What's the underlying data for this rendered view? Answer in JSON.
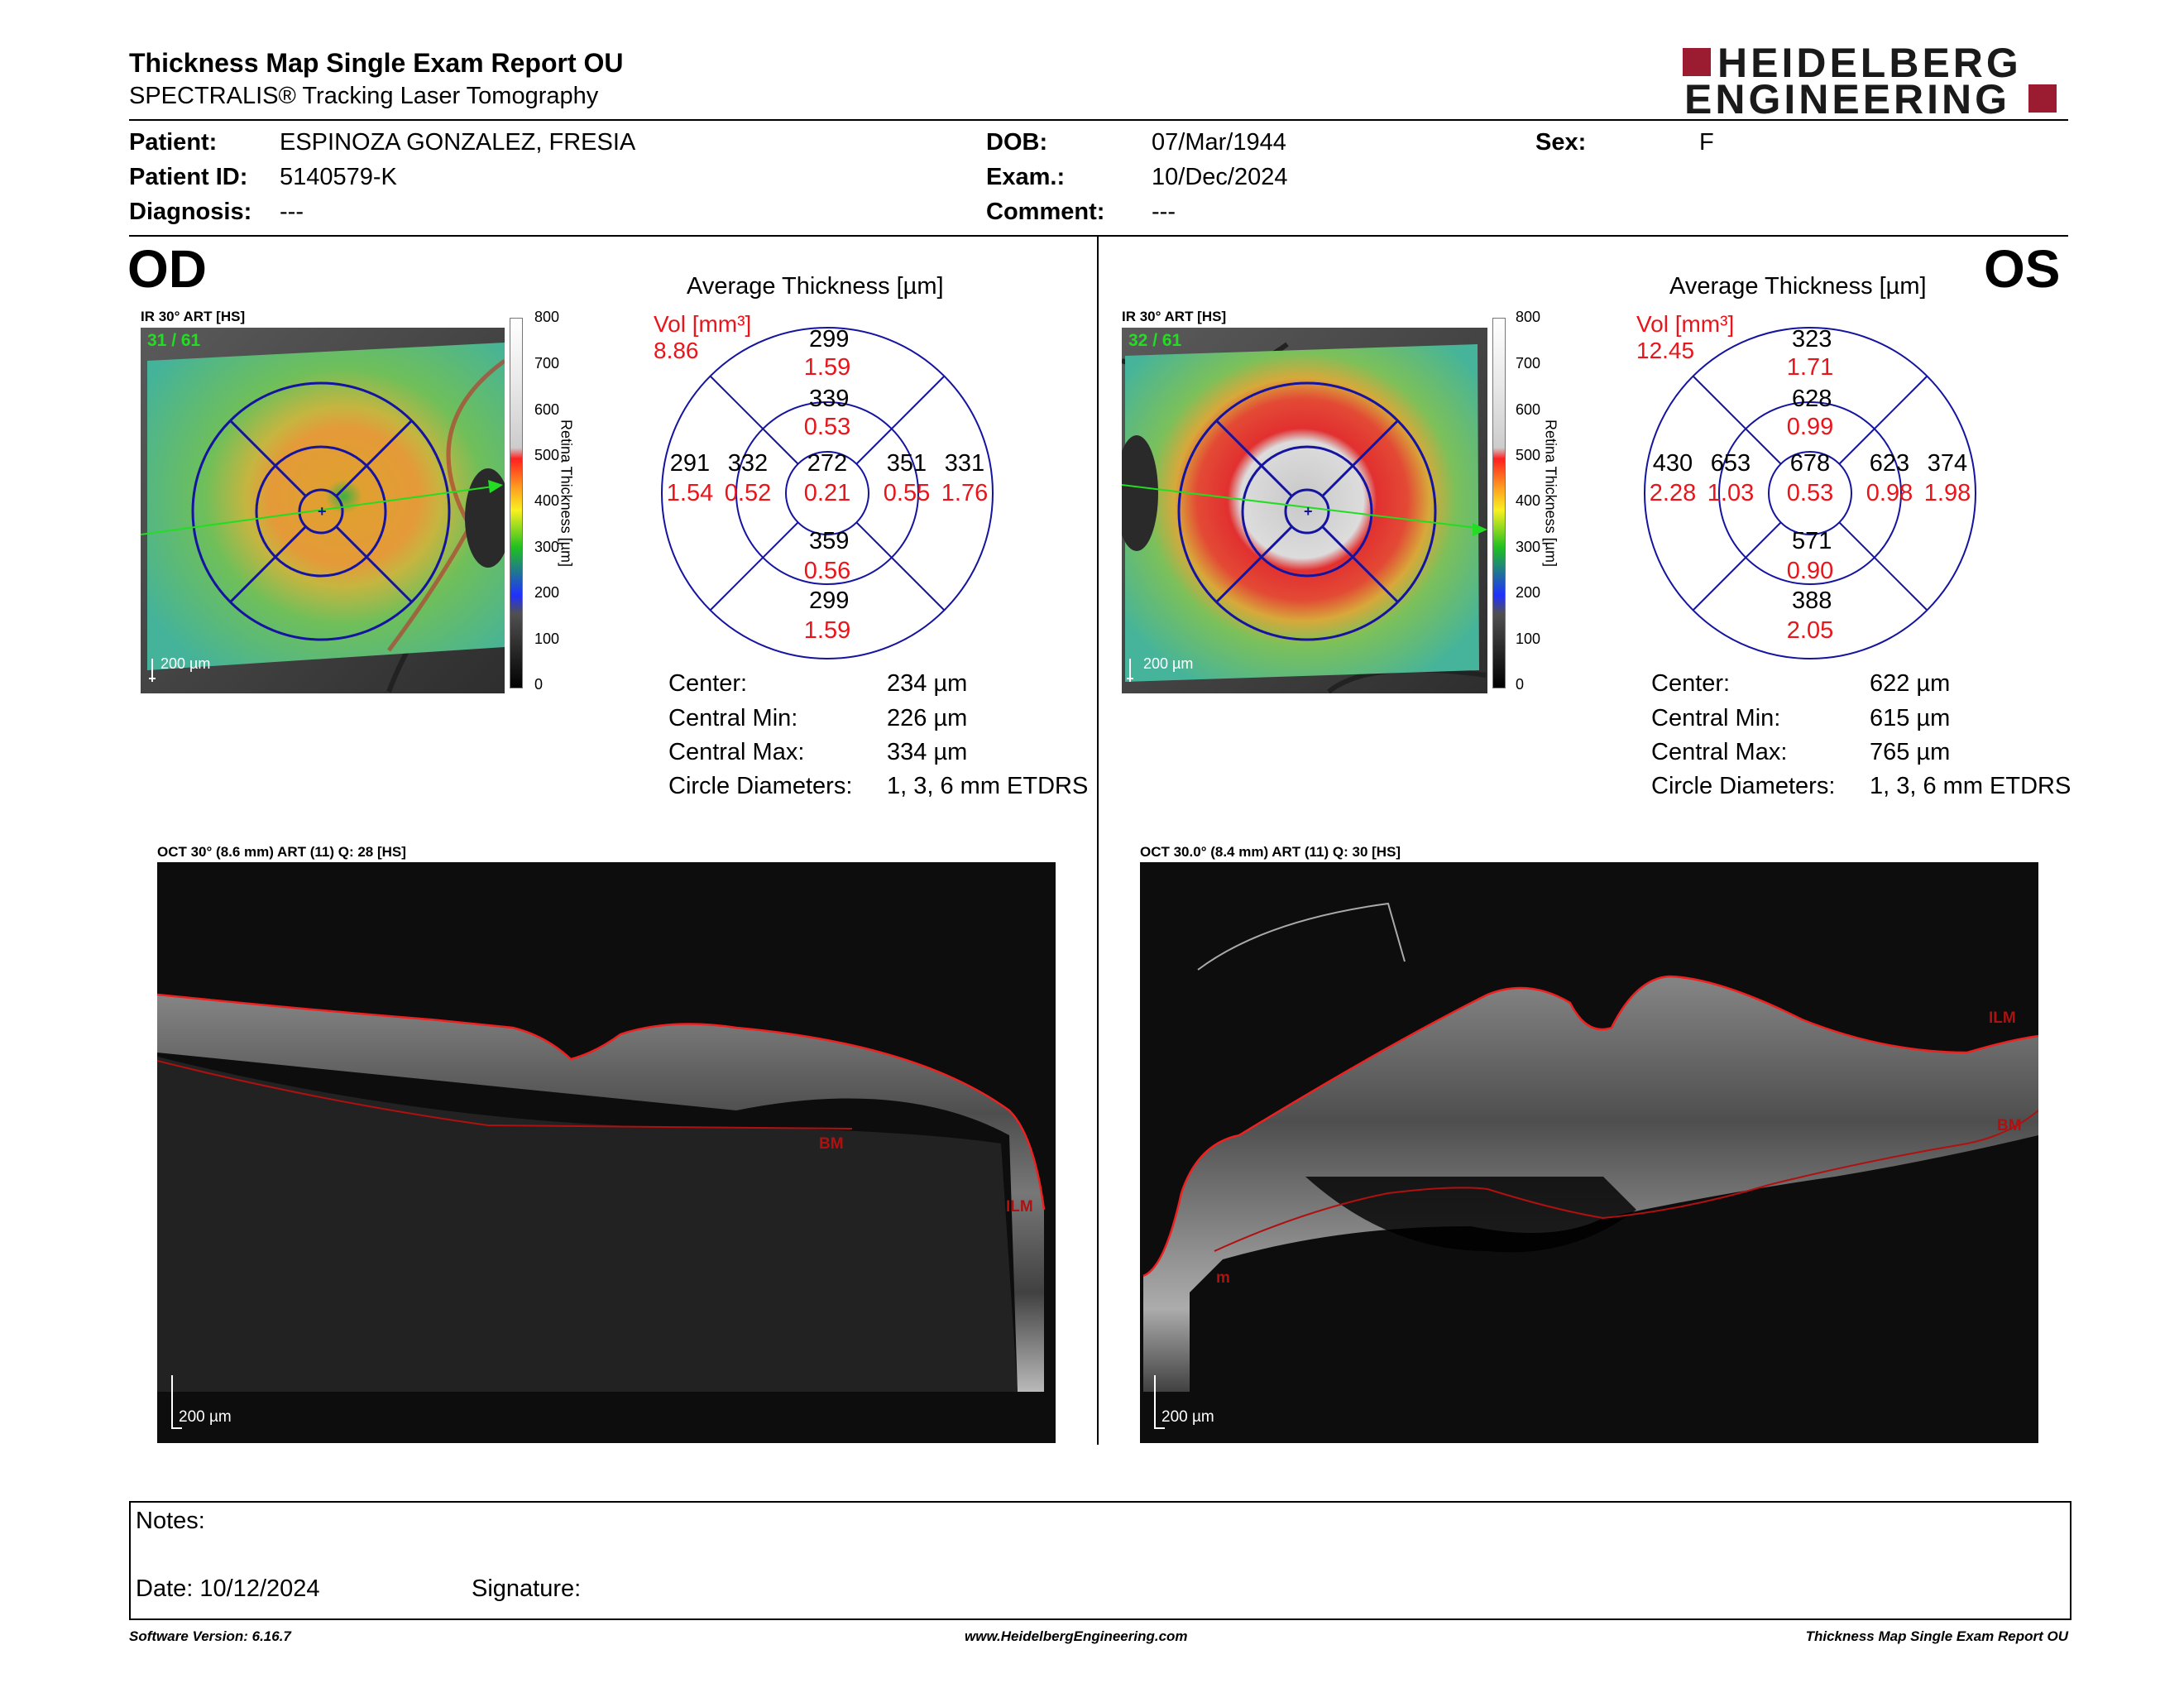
{
  "report": {
    "title": "Thickness Map Single Exam Report OU",
    "subtitle": "SPECTRALIS® Tracking Laser Tomography",
    "brand_line1": "HEIDELBERG",
    "brand_line2": "ENGINEERING"
  },
  "patient": {
    "patient_label": "Patient:",
    "patient_value": "ESPINOZA GONZALEZ, FRESIA",
    "id_label": "Patient ID:",
    "id_value": "5140579-K",
    "diagnosis_label": "Diagnosis:",
    "diagnosis_value": "---",
    "dob_label": "DOB:",
    "dob_value": "07/Mar/1944",
    "exam_label": "Exam.:",
    "exam_value": "10/Dec/2024",
    "comment_label": "Comment:",
    "comment_value": "---",
    "sex_label": "Sex:",
    "sex_value": "F"
  },
  "scale": {
    "ticks": [
      "800",
      "700",
      "600",
      "500",
      "400",
      "300",
      "200",
      "100",
      "0"
    ],
    "axis_label": "Retina Thickness [µm]"
  },
  "od": {
    "eye": "OD",
    "ir_label": "IR 30° ART [HS]",
    "ir_overlay": "31 / 61",
    "scale_bar": "200 µm",
    "avg_title": "Average Thickness [µm]",
    "vol_label": "Vol [mm³]",
    "vol_total": "8.86",
    "sectors": {
      "outer_sup": {
        "t": "299",
        "v": "1.59"
      },
      "inner_sup": {
        "t": "339",
        "v": "0.53"
      },
      "outer_temp": {
        "t": "291",
        "v": "1.54"
      },
      "inner_temp": {
        "t": "332",
        "v": "0.52"
      },
      "center": {
        "t": "272",
        "v": "0.21"
      },
      "inner_nas": {
        "t": "351",
        "v": "0.55"
      },
      "outer_nas": {
        "t": "331",
        "v": "1.76"
      },
      "inner_inf": {
        "t": "359",
        "v": "0.56"
      },
      "outer_inf": {
        "t": "299",
        "v": "1.59"
      }
    },
    "stats": {
      "center_label": "Center:",
      "center_value": "234 µm",
      "min_label": "Central Min:",
      "min_value": "226 µm",
      "max_label": "Central Max:",
      "max_value": "334 µm",
      "diam_label": "Circle Diameters:",
      "diam_value": "1, 3, 6 mm ETDRS"
    },
    "oct_label": "OCT 30° (8.6 mm) ART (11) Q: 28 [HS]",
    "oct_scale": "200 µm",
    "layer_bm": "BM",
    "layer_ilm": "ILM"
  },
  "os": {
    "eye": "OS",
    "ir_label": "IR 30° ART [HS]",
    "ir_overlay": "32 / 61",
    "scale_bar": "200 µm",
    "avg_title": "Average Thickness [µm]",
    "vol_label": "Vol [mm³]",
    "vol_total": "12.45",
    "sectors": {
      "outer_sup": {
        "t": "323",
        "v": "1.71"
      },
      "inner_sup": {
        "t": "628",
        "v": "0.99"
      },
      "outer_temp": {
        "t": "430",
        "v": "2.28"
      },
      "inner_temp": {
        "t": "653",
        "v": "1.03"
      },
      "center": {
        "t": "678",
        "v": "0.53"
      },
      "inner_nas": {
        "t": "623",
        "v": "0.98"
      },
      "outer_nas": {
        "t": "374",
        "v": "1.98"
      },
      "inner_inf": {
        "t": "571",
        "v": "0.90"
      },
      "outer_inf": {
        "t": "388",
        "v": "2.05"
      }
    },
    "stats": {
      "center_label": "Center:",
      "center_value": "622 µm",
      "min_label": "Central Min:",
      "min_value": "615 µm",
      "max_label": "Central Max:",
      "max_value": "765 µm",
      "diam_label": "Circle Diameters:",
      "diam_value": "1, 3, 6 mm ETDRS"
    },
    "oct_label": "OCT 30.0° (8.4 mm) ART (11) Q: 30 [HS]",
    "oct_scale": "200 µm",
    "layer_bm": "BM",
    "layer_ilm": "ILM",
    "layer_m": "m"
  },
  "notes": {
    "notes_label": "Notes:",
    "date_label": "Date: 10/12/2024",
    "signature_label": "Signature:"
  },
  "footer": {
    "software": "Software Version: 6.16.7",
    "website": "www.HeidelbergEngineering.com",
    "report_name": "Thickness Map Single Exam Report OU"
  },
  "colors": {
    "accent_red": "#9b1b30",
    "value_red": "#e8151b",
    "grid_blue": "#1414a0",
    "scan_green": "#22dd22"
  }
}
